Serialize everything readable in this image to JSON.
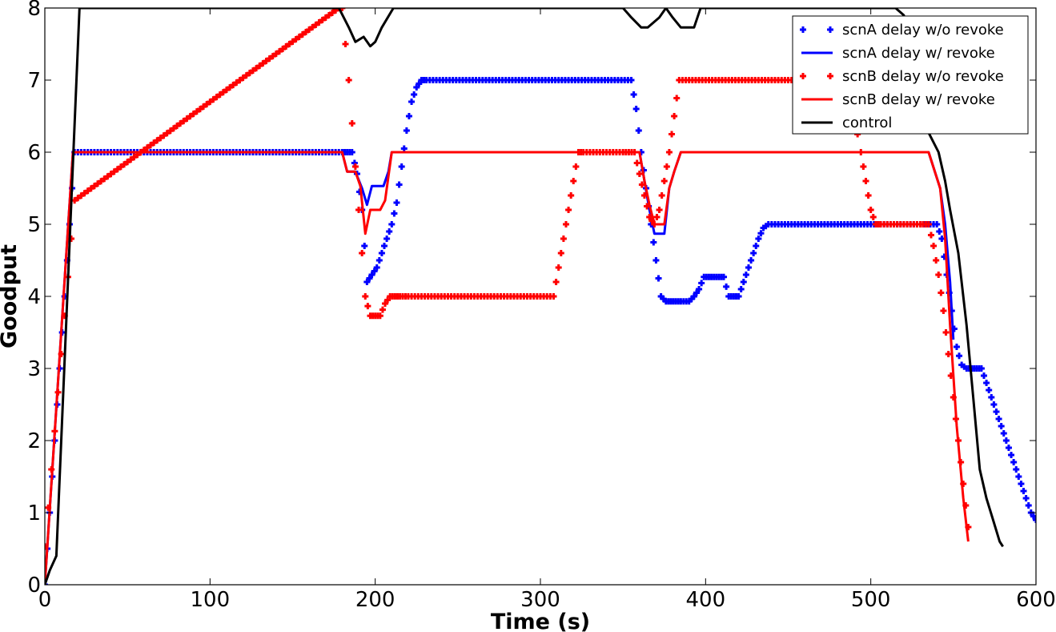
{
  "chart_data": {
    "type": "line",
    "xlabel": "Time (s)",
    "ylabel": "Goodput",
    "xlim": [
      0,
      600
    ],
    "ylim": [
      0,
      8
    ],
    "xticks": [
      0,
      100,
      200,
      300,
      400,
      500,
      600
    ],
    "yticks": [
      0,
      1,
      2,
      3,
      4,
      5,
      6,
      7,
      8
    ],
    "grid": false,
    "legend_position": "top-right",
    "series": [
      {
        "name": "scnA delay w/o revoke",
        "style": "plus",
        "color": "#0000ff",
        "x": [
          0,
          3,
          6,
          9,
          12,
          15,
          18,
          180,
          183,
          186,
          189,
          192,
          195,
          198,
          201,
          204,
          207,
          210,
          213,
          216,
          219,
          222,
          225,
          228,
          231,
          355,
          358,
          361,
          364,
          367,
          370,
          373,
          376,
          379,
          382,
          385,
          390,
          393,
          396,
          399,
          402,
          405,
          408,
          411,
          414,
          417,
          420,
          423,
          426,
          429,
          432,
          435,
          438,
          540,
          543,
          546,
          549,
          552,
          555,
          558,
          561,
          564,
          567,
          570,
          573,
          576,
          579,
          582,
          585,
          588,
          591,
          594,
          597,
          600
        ],
        "y": [
          0,
          1,
          2,
          3,
          4,
          5,
          6,
          6,
          6,
          6,
          5.7,
          5.2,
          4.2,
          4.3,
          4.4,
          4.6,
          4.8,
          5,
          5.3,
          5.8,
          6.3,
          6.7,
          6.9,
          7,
          7,
          7,
          6.6,
          6.0,
          5.5,
          5.0,
          4.5,
          4.0,
          3.93,
          3.93,
          3.93,
          3.93,
          3.93,
          4.0,
          4.1,
          4.27,
          4.27,
          4.27,
          4.27,
          4.27,
          4.0,
          4.0,
          4.0,
          4.2,
          4.4,
          4.6,
          4.8,
          4.95,
          5,
          5,
          4.8,
          4.3,
          3.8,
          3.3,
          3.05,
          3.0,
          3.0,
          3.0,
          3.0,
          2.8,
          2.6,
          2.4,
          2.2,
          2.0,
          1.8,
          1.6,
          1.4,
          1.2,
          1.0,
          0.9
        ]
      },
      {
        "name": "scnA delay w/ revoke",
        "style": "line",
        "color": "#0000ff",
        "x": [
          0,
          17,
          180,
          183,
          188,
          192,
          195,
          198,
          205,
          208,
          210,
          360,
          363,
          366,
          369,
          372,
          375,
          378,
          381,
          385,
          535,
          542,
          545,
          548,
          550
        ],
        "y": [
          0,
          6,
          6,
          5.73,
          5.73,
          5.5,
          5.27,
          5.53,
          5.53,
          5.73,
          6,
          6,
          5.6,
          5.2,
          4.87,
          4.87,
          4.87,
          5.5,
          5.73,
          6,
          6,
          5.5,
          5.0,
          4.2,
          3.4
        ]
      },
      {
        "name": "scnB delay w/o revoke",
        "style": "plus",
        "color": "#ff0000",
        "x": [
          0,
          2,
          4,
          6,
          8,
          10,
          12,
          14,
          16,
          18,
          178,
          180,
          182,
          184,
          186,
          188,
          190,
          192,
          194,
          197,
          200,
          203,
          206,
          209,
          212,
          215,
          220,
          230,
          240,
          250,
          260,
          270,
          280,
          290,
          300,
          308,
          311,
          314,
          317,
          320,
          323,
          326,
          330,
          340,
          350,
          357,
          360,
          363,
          366,
          369,
          372,
          375,
          378,
          381,
          384,
          390,
          400,
          410,
          420,
          430,
          440,
          450,
          460,
          470,
          480,
          490,
          494,
          497,
          500,
          503,
          506,
          510,
          520,
          530,
          535,
          538,
          541,
          544,
          547,
          550,
          553,
          556,
          559
        ],
        "y": [
          0.53,
          1.07,
          1.6,
          2.13,
          2.67,
          3.2,
          3.73,
          4.27,
          4.8,
          5.33,
          8,
          8,
          7.5,
          7.0,
          6.4,
          5.8,
          5.2,
          4.6,
          4.0,
          3.73,
          3.73,
          3.73,
          3.9,
          4.0,
          4.0,
          4.0,
          4.0,
          4.0,
          4.0,
          4.0,
          4.0,
          4.0,
          4.0,
          4.0,
          4.0,
          4.0,
          4.4,
          4.8,
          5.2,
          5.6,
          6.0,
          6.0,
          6.0,
          6.0,
          6.0,
          6.0,
          5.7,
          5.4,
          5.1,
          5.0,
          5.2,
          5.6,
          6.0,
          6.5,
          7.0,
          7.0,
          7.0,
          7.0,
          7.0,
          7.0,
          7.0,
          7.0,
          7.0,
          7.0,
          7.0,
          6.5,
          6.0,
          5.6,
          5.2,
          5.0,
          5.0,
          5.0,
          5.0,
          5.0,
          5.0,
          4.7,
          4.3,
          3.8,
          3.2,
          2.6,
          2.0,
          1.4,
          0.8
        ]
      },
      {
        "name": "scnB delay w/ revoke",
        "style": "line",
        "color": "#ff0000",
        "x": [
          0,
          17,
          180,
          183,
          188,
          191,
          194,
          197,
          203,
          206,
          210,
          360,
          363,
          366,
          369,
          372,
          375,
          378,
          381,
          385,
          535,
          542,
          545,
          548,
          552,
          556,
          559
        ],
        "y": [
          0,
          6,
          6,
          5.73,
          5.73,
          5.53,
          4.87,
          5.2,
          5.2,
          5.33,
          6,
          6,
          5.6,
          5.27,
          5.0,
          5.0,
          5.0,
          5.5,
          5.73,
          6,
          6,
          5.5,
          4.8,
          3.6,
          2.2,
          1.2,
          0.6
        ]
      },
      {
        "name": "control",
        "style": "line",
        "color": "#000000",
        "x": [
          0,
          3,
          7,
          21,
          178,
          184,
          188,
          193,
          197,
          200,
          204,
          211,
          217,
          350,
          355,
          361,
          365,
          372,
          376,
          380,
          385,
          393,
          397,
          500,
          515,
          520,
          530,
          535,
          541,
          545,
          548,
          553,
          558,
          562,
          566,
          570,
          574,
          578,
          580
        ],
        "y": [
          0,
          0.2,
          0.4,
          8,
          8,
          7.73,
          7.53,
          7.6,
          7.47,
          7.53,
          7.73,
          8,
          8,
          8,
          7.87,
          7.73,
          7.73,
          7.87,
          8,
          7.87,
          7.73,
          7.73,
          8,
          8,
          8,
          7.9,
          7.0,
          6.27,
          6.0,
          5.6,
          5.2,
          4.6,
          3.6,
          2.6,
          1.6,
          1.2,
          0.9,
          0.6,
          0.53
        ]
      }
    ]
  }
}
